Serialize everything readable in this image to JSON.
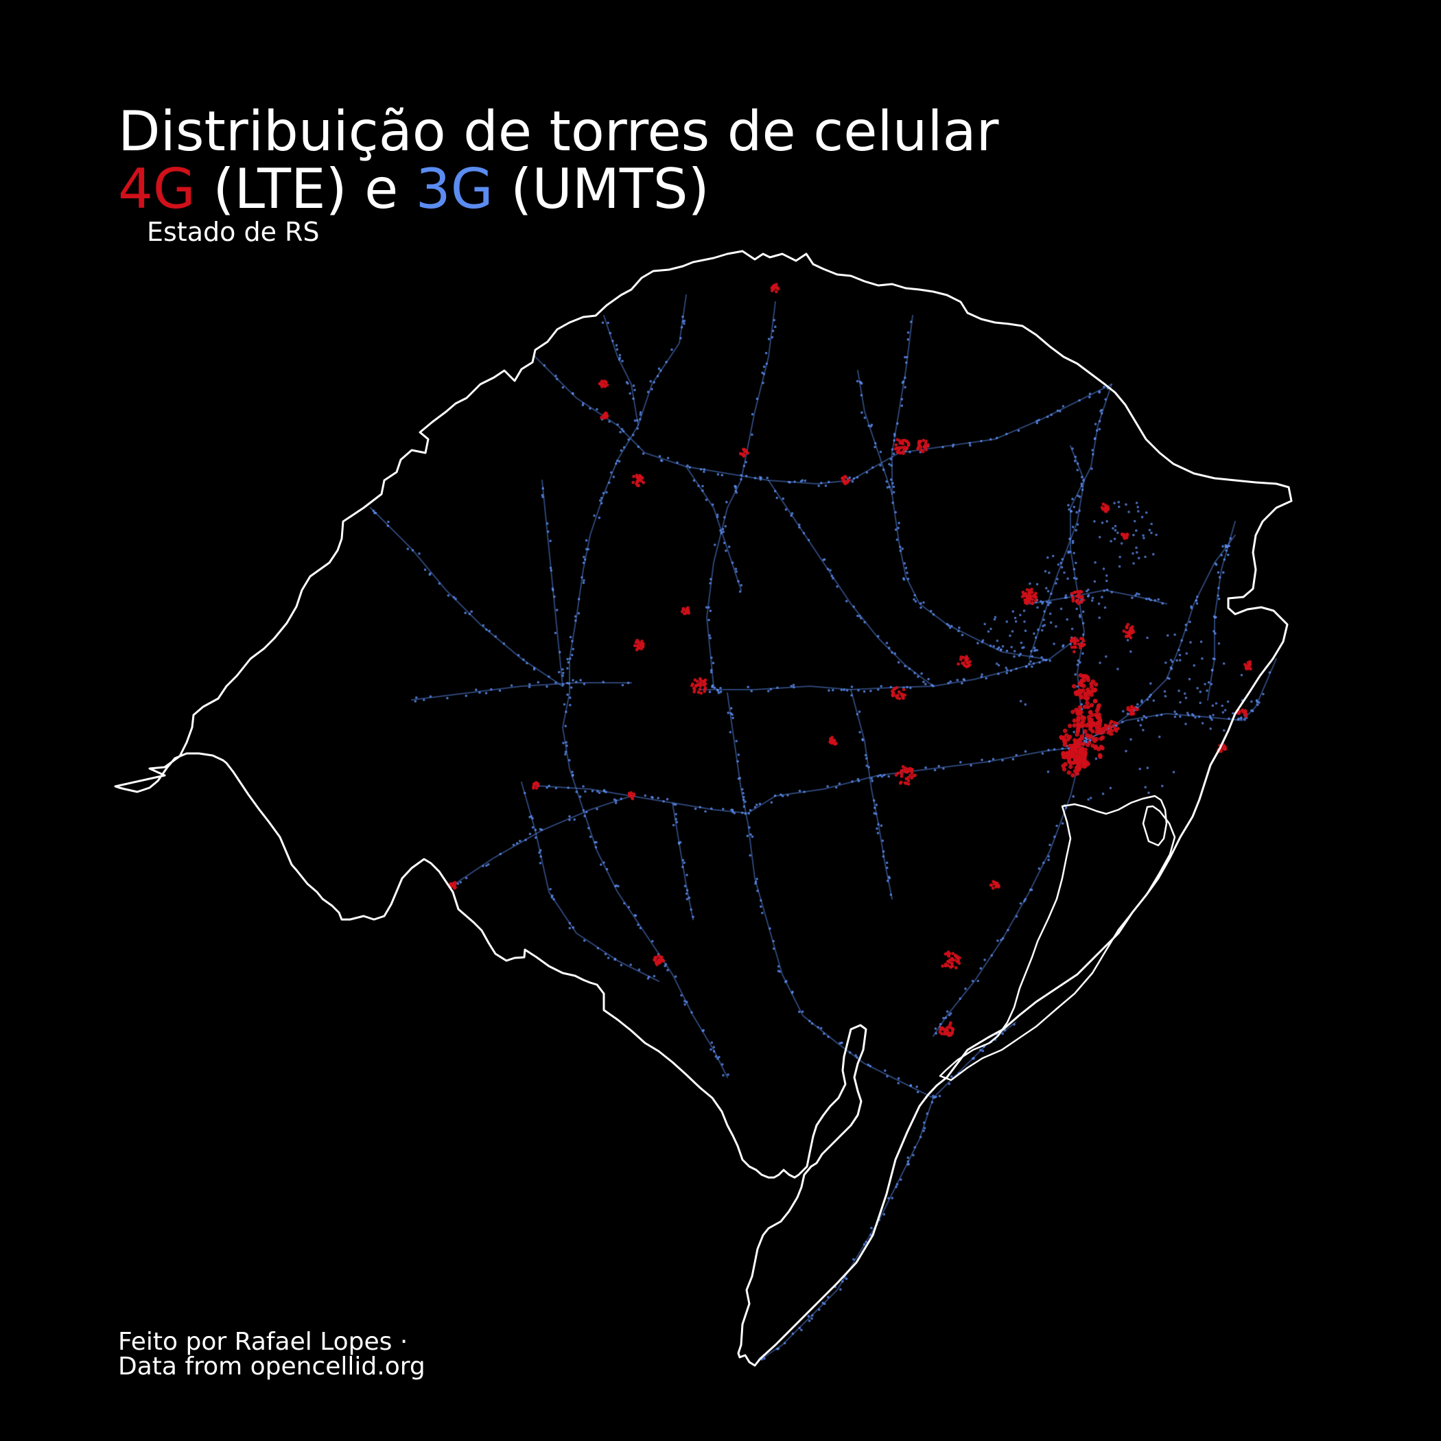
{
  "title": {
    "line1": "Distribuição de torres de celular",
    "lte_label": "4G",
    "lte_suffix": " (LTE) e ",
    "umts_label": "3G",
    "umts_suffix": " (UMTS)"
  },
  "subtitle": "Estado de RS",
  "credits": {
    "author": "Feito por Rafael Lopes ·",
    "source": "Data from opencellid.org"
  },
  "colors": {
    "background": "#000000",
    "outline": "#ffffff",
    "lte": "#d0101a",
    "umts": "#5b8cf0"
  },
  "map": {
    "region": "RS",
    "layers": [
      "state-outline",
      "umts-towers",
      "lte-towers"
    ]
  }
}
